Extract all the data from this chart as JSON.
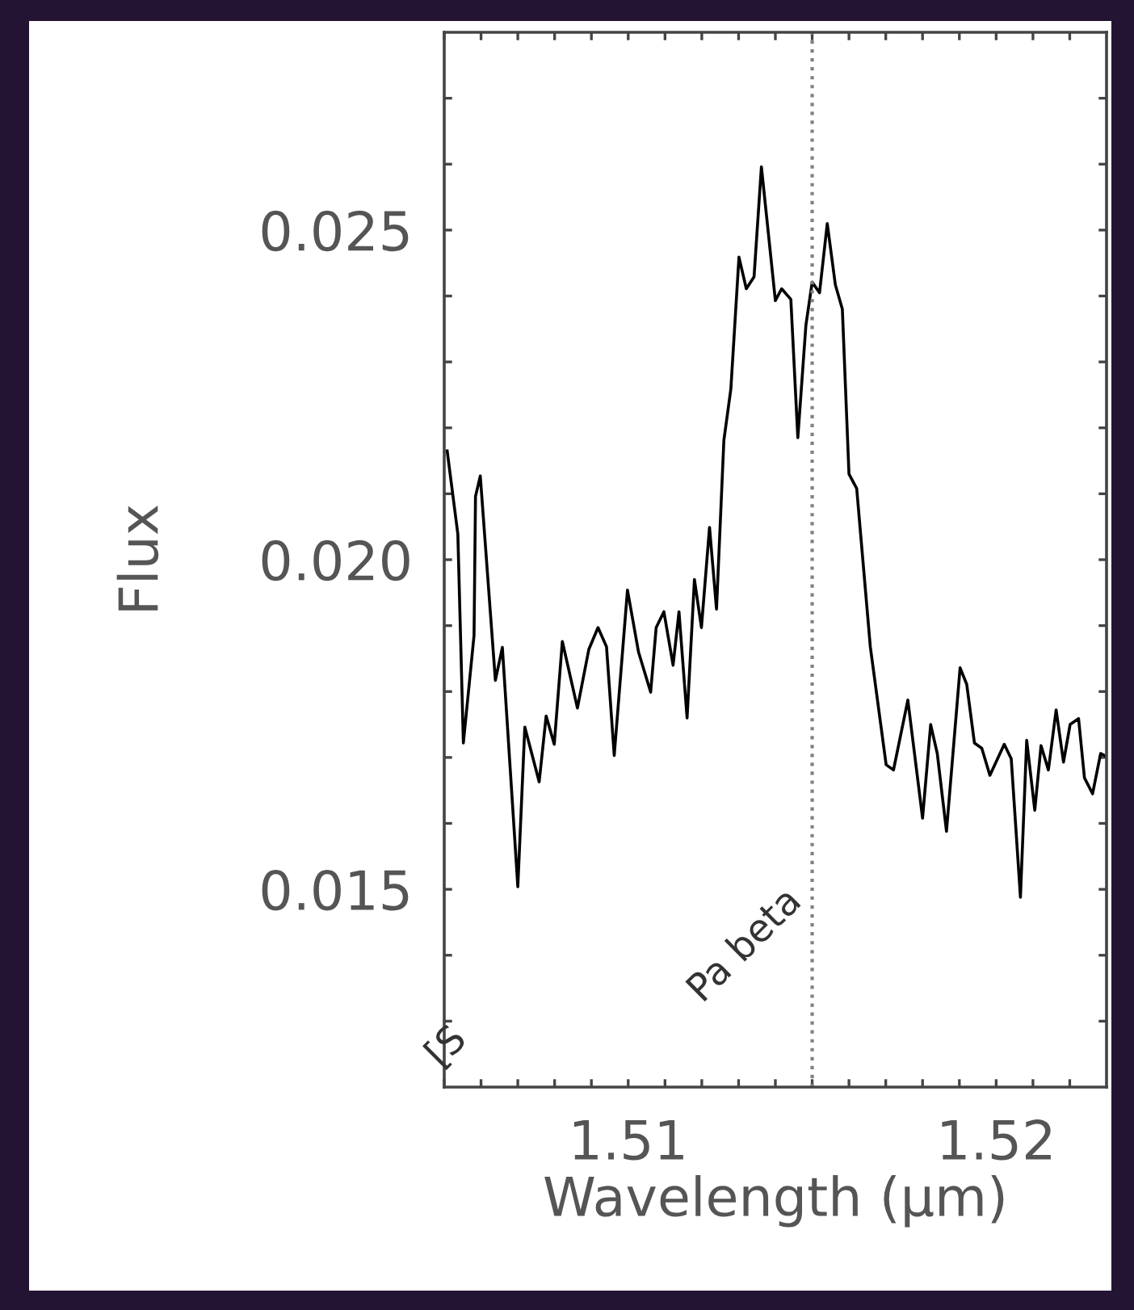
{
  "chart_data": {
    "type": "line",
    "xlabel": "Wavelength (µm)",
    "ylabel": "Flux",
    "xlim": [
      1.505,
      1.523
    ],
    "ylim": [
      0.012,
      0.028
    ],
    "xticks": [
      {
        "value": 1.505,
        "label": null
      },
      {
        "value": 1.506,
        "label": null
      },
      {
        "value": 1.507,
        "label": null
      },
      {
        "value": 1.508,
        "label": null
      },
      {
        "value": 1.509,
        "label": null
      },
      {
        "value": 1.51,
        "label": "1.51"
      },
      {
        "value": 1.511,
        "label": null
      },
      {
        "value": 1.512,
        "label": null
      },
      {
        "value": 1.513,
        "label": null
      },
      {
        "value": 1.514,
        "label": null
      },
      {
        "value": 1.515,
        "label": null
      },
      {
        "value": 1.516,
        "label": null
      },
      {
        "value": 1.517,
        "label": null
      },
      {
        "value": 1.518,
        "label": null
      },
      {
        "value": 1.519,
        "label": null
      },
      {
        "value": 1.52,
        "label": "1.52"
      },
      {
        "value": 1.521,
        "label": null
      },
      {
        "value": 1.522,
        "label": null
      }
    ],
    "yticks": [
      {
        "value": 0.013,
        "label": null
      },
      {
        "value": 0.014,
        "label": null
      },
      {
        "value": 0.015,
        "label": "0.015"
      },
      {
        "value": 0.016,
        "label": null
      },
      {
        "value": 0.017,
        "label": null
      },
      {
        "value": 0.018,
        "label": null
      },
      {
        "value": 0.019,
        "label": null
      },
      {
        "value": 0.02,
        "label": "0.020"
      },
      {
        "value": 0.021,
        "label": null
      },
      {
        "value": 0.022,
        "label": null
      },
      {
        "value": 0.023,
        "label": null
      },
      {
        "value": 0.024,
        "label": null
      },
      {
        "value": 0.025,
        "label": "0.025"
      },
      {
        "value": 0.026,
        "label": null
      },
      {
        "value": 0.027,
        "label": null
      }
    ],
    "grid": false,
    "legend": false,
    "marker": "none",
    "line_style": "solid",
    "series": [
      {
        "color": "#000000",
        "x": [
          1.50508,
          1.50537,
          1.50552,
          1.50581,
          1.50585,
          1.50598,
          1.50639,
          1.50658,
          1.507,
          1.50719,
          1.50758,
          1.50777,
          1.50799,
          1.50821,
          1.50862,
          1.50893,
          1.50918,
          1.50941,
          1.50962,
          1.50998,
          1.51028,
          1.51061,
          1.51076,
          1.51097,
          1.51122,
          1.51138,
          1.5116,
          1.5118,
          1.51199,
          1.51221,
          1.5124,
          1.5126,
          1.51279,
          1.51301,
          1.51321,
          1.51342,
          1.51362,
          1.514,
          1.51417,
          1.51442,
          1.51461,
          1.51483,
          1.515,
          1.5152,
          1.51541,
          1.51563,
          1.51582,
          1.516,
          1.51621,
          1.51658,
          1.51701,
          1.51721,
          1.5176,
          1.518,
          1.51822,
          1.5184,
          1.51865,
          1.51902,
          1.5192,
          1.51941,
          1.51961,
          1.51983,
          1.52022,
          1.52041,
          1.52066,
          1.52083,
          1.52105,
          1.52122,
          1.52142,
          1.52163,
          1.52183,
          1.52201,
          1.52224,
          1.5224,
          1.52262,
          1.52284,
          1.52298
        ],
        "values": [
          0.02165,
          0.02039,
          0.01722,
          0.01885,
          0.02096,
          0.02127,
          0.01817,
          0.01867,
          0.01504,
          0.01746,
          0.01663,
          0.01763,
          0.0172,
          0.01876,
          0.01775,
          0.01864,
          0.01897,
          0.01868,
          0.01703,
          0.01954,
          0.0186,
          0.01799,
          0.01897,
          0.01921,
          0.0184,
          0.01921,
          0.0176,
          0.0197,
          0.01897,
          0.02049,
          0.01925,
          0.02181,
          0.02259,
          0.02459,
          0.02411,
          0.02429,
          0.02596,
          0.02393,
          0.02411,
          0.02395,
          0.02185,
          0.02356,
          0.02421,
          0.02405,
          0.0251,
          0.02417,
          0.0238,
          0.0213,
          0.02108,
          0.01868,
          0.01689,
          0.01681,
          0.01787,
          0.01608,
          0.0175,
          0.01706,
          0.01588,
          0.01836,
          0.01811,
          0.01722,
          0.01714,
          0.01673,
          0.0172,
          0.01698,
          0.01488,
          0.01726,
          0.0162,
          0.01718,
          0.01681,
          0.01772,
          0.01693,
          0.0175,
          0.01759,
          0.01669,
          0.01645,
          0.01706,
          0.01702
        ]
      }
    ],
    "ref_lines": [
      {
        "axis": "x",
        "value": 1.515,
        "label": "Pa beta",
        "color": "#808080",
        "line_style": "dotted"
      }
    ],
    "annotations": [
      "[S"
    ]
  }
}
